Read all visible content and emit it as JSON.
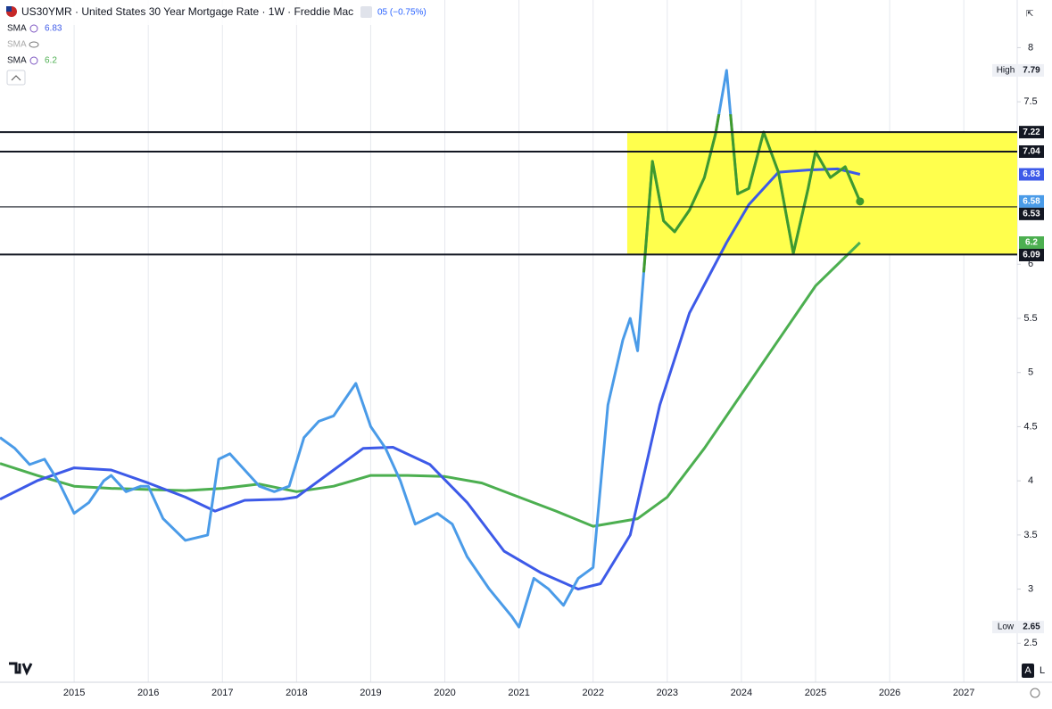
{
  "chart_data": {
    "type": "line",
    "title": "US30YMR · United States 30 Year Mortgage Rate · 1W · Freddie Mac",
    "change": "05 (−0.75%)",
    "legend_label": "SMA",
    "hidden_indicator": "SMA",
    "high_label": "High",
    "low_label": "Low",
    "buttons": [
      "A",
      "L"
    ],
    "xlim": [
      2014.0,
      2027.72
    ],
    "xticks": [
      2015,
      2016,
      2017,
      2018,
      2019,
      2020,
      2021,
      2022,
      2023,
      2024,
      2025,
      2026,
      2027
    ],
    "ylim": [
      2.14,
      8.44
    ],
    "yticks": [
      2.5,
      3,
      3.5,
      4,
      4.5,
      5,
      5.5,
      6,
      7.5,
      8
    ],
    "grid": true,
    "levels": [
      7.22,
      7.04,
      6.53,
      6.09
    ],
    "highlight": {
      "color": "#ffff4d",
      "x_from": 2022.46,
      "y_from": 6.09,
      "y_to": 7.22,
      "line_color": "#3f9a2c"
    },
    "series": [
      {
        "name": "US30YMR",
        "color": "#4a9be8",
        "x": [
          2014.0,
          2014.2,
          2014.4,
          2014.6,
          2014.8,
          2015.0,
          2015.2,
          2015.4,
          2015.5,
          2015.7,
          2015.9,
          2016.0,
          2016.2,
          2016.5,
          2016.8,
          2016.95,
          2017.1,
          2017.3,
          2017.5,
          2017.7,
          2017.9,
          2018.1,
          2018.3,
          2018.5,
          2018.8,
          2019.0,
          2019.2,
          2019.4,
          2019.6,
          2019.9,
          2020.1,
          2020.3,
          2020.6,
          2020.9,
          2021.0,
          2021.2,
          2021.4,
          2021.6,
          2021.8,
          2022.0,
          2022.2,
          2022.4,
          2022.5,
          2022.6,
          2022.8,
          2022.95,
          2023.1,
          2023.3,
          2023.5,
          2023.65,
          2023.8,
          2023.95,
          2024.1,
          2024.3,
          2024.5,
          2024.7,
          2024.9,
          2025.0,
          2025.2,
          2025.4,
          2025.6
        ],
        "values": [
          4.4,
          4.3,
          4.15,
          4.2,
          3.98,
          3.7,
          3.8,
          4.0,
          4.05,
          3.9,
          3.95,
          3.95,
          3.65,
          3.45,
          3.5,
          4.2,
          4.25,
          4.1,
          3.95,
          3.9,
          3.95,
          4.4,
          4.55,
          4.6,
          4.9,
          4.5,
          4.3,
          4.0,
          3.6,
          3.7,
          3.6,
          3.3,
          3.0,
          2.75,
          2.65,
          3.1,
          3.0,
          2.85,
          3.1,
          3.2,
          4.7,
          5.3,
          5.5,
          5.2,
          6.95,
          6.4,
          6.3,
          6.5,
          6.8,
          7.2,
          7.79,
          6.65,
          6.7,
          7.22,
          6.85,
          6.1,
          6.7,
          7.04,
          6.8,
          6.9,
          6.58
        ]
      },
      {
        "name": "SMA",
        "color": "#3d5ae8",
        "x": [
          2014.0,
          2014.5,
          2015.0,
          2015.5,
          2016.0,
          2016.5,
          2016.9,
          2017.3,
          2017.8,
          2018.0,
          2018.5,
          2018.9,
          2019.3,
          2019.8,
          2020.3,
          2020.8,
          2021.3,
          2021.8,
          2022.1,
          2022.5,
          2022.9,
          2023.3,
          2023.8,
          2024.1,
          2024.5,
          2024.9,
          2025.3,
          2025.6
        ],
        "values": [
          3.83,
          4.0,
          4.12,
          4.1,
          3.98,
          3.85,
          3.72,
          3.82,
          3.83,
          3.85,
          4.1,
          4.3,
          4.31,
          4.15,
          3.8,
          3.35,
          3.15,
          3.0,
          3.05,
          3.5,
          4.7,
          5.55,
          6.2,
          6.55,
          6.85,
          6.87,
          6.88,
          6.83
        ]
      },
      {
        "name": "SMA",
        "color": "#4caf50",
        "x": [
          2014.0,
          2014.5,
          2015.0,
          2015.5,
          2016.0,
          2016.5,
          2017.0,
          2017.5,
          2018.0,
          2018.5,
          2019.0,
          2019.5,
          2020.0,
          2020.5,
          2021.0,
          2021.5,
          2022.0,
          2022.6,
          2023.0,
          2023.5,
          2024.0,
          2024.5,
          2025.0,
          2025.6
        ],
        "values": [
          4.16,
          4.05,
          3.95,
          3.93,
          3.92,
          3.91,
          3.93,
          3.97,
          3.9,
          3.95,
          4.05,
          4.05,
          4.04,
          3.98,
          3.85,
          3.72,
          3.58,
          3.65,
          3.85,
          4.3,
          4.8,
          5.3,
          5.8,
          6.2
        ]
      }
    ]
  }
}
